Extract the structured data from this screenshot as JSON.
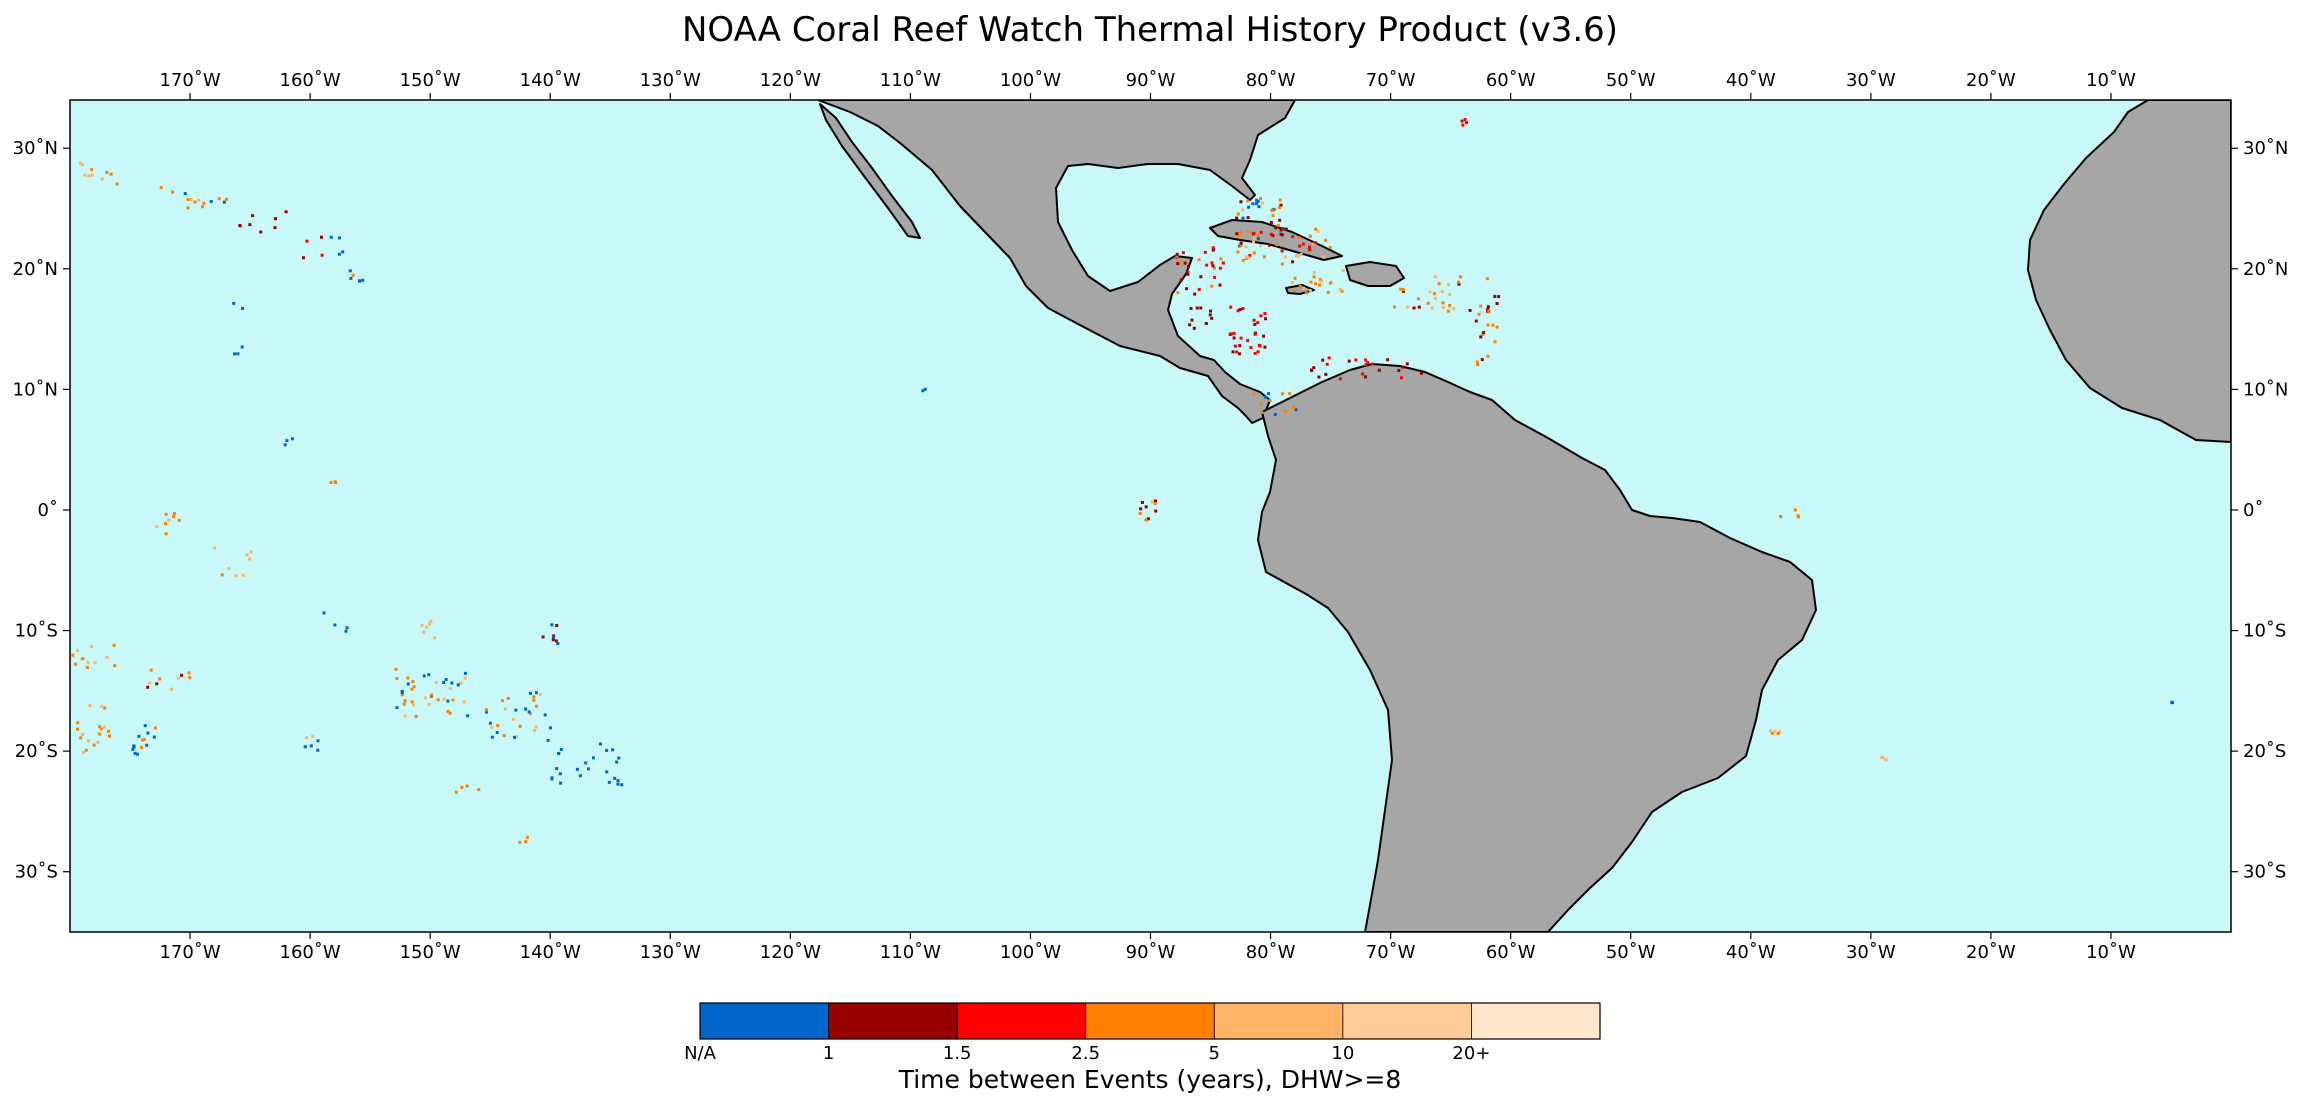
{
  "title": "NOAA Coral Reef Watch Thermal History Product (v3.6)",
  "map": {
    "projection": "equirectangular",
    "lon_range": [
      -180,
      0
    ],
    "lat_range": [
      -35,
      34
    ],
    "ocean_color": "#c8f8f8",
    "land_color": "#a6a6a6",
    "coast_color": "#000000",
    "lon_ticks": [
      "170˚W",
      "160˚W",
      "150˚W",
      "140˚W",
      "130˚W",
      "120˚W",
      "110˚W",
      "100˚W",
      "90˚W",
      "80˚W",
      "70˚W",
      "60˚W",
      "50˚W",
      "40˚W",
      "30˚W",
      "20˚W",
      "10˚W"
    ],
    "lat_ticks": [
      "30˚N",
      "20˚N",
      "10˚N",
      "0˚",
      "10˚S",
      "20˚S",
      "30˚S"
    ]
  },
  "colorbar": {
    "label": "Time between Events (years), DHW>=8",
    "tick_labels": [
      "N/A",
      "1",
      "1.5",
      "2.5",
      "5",
      "10",
      "20+"
    ],
    "colors": [
      "#0066cc",
      "#990000",
      "#ff0000",
      "#ff8000",
      "#ffb366",
      "#ffcc99",
      "#ffe6cc"
    ]
  }
}
